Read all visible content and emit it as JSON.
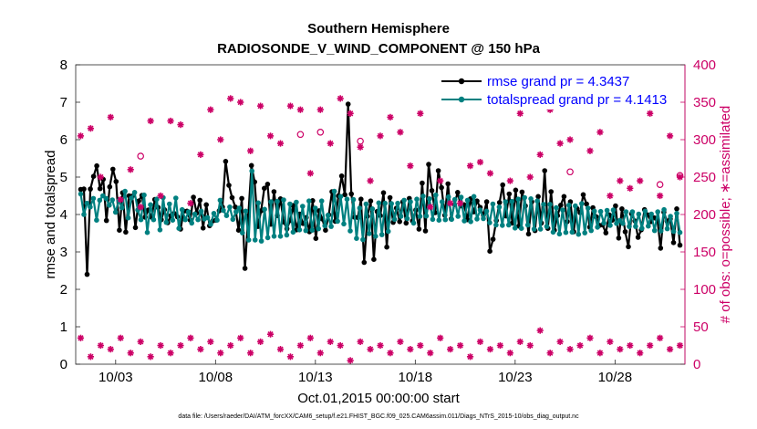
{
  "chart_data": {
    "type": "line",
    "title": "Southern Hemisphere",
    "subtitle": "RADIOSONDE_V_WIND_COMPONENT @ 150 hPa",
    "xlabel": "Oct.01,2015 00:00:00 start",
    "ylabel_left": "rmse and totalspread",
    "ylabel_right": "# of obs: o=possible; ∗=assimilated",
    "footnote": "data file: /Users/raeder/DAI/ATM_forcXX/CAM6_setup/f.e21.FHIST_BGC.f09_025.CAM6assim.011/Diags_NTrS_2015-10/obs_diag_output.nc",
    "xlim": [
      1.0,
      31.5
    ],
    "ylim_left": [
      0,
      8
    ],
    "ylim_right": [
      0,
      400
    ],
    "x_ticks": [
      3,
      8,
      13,
      18,
      23,
      28
    ],
    "x_tick_labels": [
      "10/03",
      "10/08",
      "10/13",
      "10/18",
      "10/23",
      "10/28"
    ],
    "y_ticks_left": [
      0,
      1,
      2,
      3,
      4,
      5,
      6,
      7,
      8
    ],
    "y_ticks_right": [
      0,
      50,
      100,
      150,
      200,
      250,
      300,
      350,
      400
    ],
    "legend": {
      "rmse": "rmse grand pr = 4.3437",
      "spread": "totalspread grand pr = 4.1413",
      "location": "top-right"
    },
    "series": [
      {
        "name": "rmse",
        "color": "#000000",
        "values": [
          4.67,
          4.68,
          2.4,
          4.68,
          5.02,
          5.3,
          4.69,
          4.94,
          3.84,
          4.74,
          5.21,
          4.88,
          3.58,
          4.58,
          3.53,
          4.5,
          4.49,
          3.65,
          4.36,
          4.51,
          3.93,
          4.12,
          3.93,
          4.4,
          4.19,
          3.86,
          4.13,
          3.78,
          3.97,
          4.03,
          3.94,
          3.61,
          4.09,
          4.09,
          3.85,
          4.46,
          4.04,
          4.38,
          3.64,
          4.26,
          3.7,
          3.83,
          3.85,
          4.1,
          4.2,
          5.42,
          4.78,
          4.45,
          4.2,
          3.58,
          4.43,
          2.56,
          3.96,
          5.31,
          4.87,
          3.68,
          4.1,
          4.7,
          4.81,
          3.74,
          4.61,
          3.97,
          4.42,
          3.8,
          3.62,
          3.84,
          4.24,
          3.59,
          4.01,
          3.76,
          3.92,
          3.54,
          4.37,
          3.36,
          4.1,
          3.88,
          3.58,
          3.99,
          4.61,
          3.82,
          4.5,
          5.03,
          4.53,
          6.95,
          4.55,
          3.93,
          3.92,
          4.41,
          2.72,
          3.95,
          4.36,
          2.8,
          4.08,
          3.97,
          4.58,
          3.13,
          4.45,
          3.79,
          4.17,
          3.81,
          4.34,
          3.77,
          4.43,
          3.83,
          4.12,
          3.61,
          4.84,
          3.56,
          5.34,
          4.64,
          4.05,
          5.17,
          4.72,
          3.98,
          4.82,
          3.88,
          4.27,
          4.59,
          4.23,
          4.26,
          3.86,
          4.42,
          4.07,
          4.36,
          4.19,
          3.98,
          4.34,
          3.02,
          3.34,
          3.84,
          4.32,
          4.79,
          3.96,
          4.55,
          3.77,
          4.65,
          3.69,
          4.6,
          4.23,
          3.48,
          4.34,
          3.57,
          4.48,
          3.77,
          5.17,
          3.63,
          4.61,
          3.58,
          3.97,
          4.25,
          4.48,
          3.81,
          4.34,
          3.54,
          4.16,
          4.05,
          4.53,
          4.28,
          3.66,
          4.18,
          3.94,
          3.71,
          3.72,
          3.51,
          3.99,
          3.85,
          4.23,
          3.37,
          4.15,
          3.54,
          3.14,
          4.02,
          3.83,
          3.39,
          3.59,
          4.13,
          3.99,
          3.81,
          3.91,
          3.86,
          3.1,
          4.06,
          3.82,
          3.88,
          3.25,
          4.15,
          3.18
        ]
      },
      {
        "name": "totalspread",
        "color": "#008080",
        "values": [
          4.55,
          4.0,
          4.3,
          4.2,
          4.43,
          3.85,
          4.38,
          4.5,
          4.43,
          4.25,
          4.39,
          4.06,
          4.37,
          4.18,
          4.62,
          3.91,
          4.44,
          4.59,
          4.12,
          3.86,
          4.52,
          3.52,
          4.26,
          3.86,
          4.41,
          3.59,
          4.45,
          3.79,
          4.28,
          3.85,
          4.44,
          3.63,
          4.13,
          3.86,
          4.07,
          3.77,
          4.01,
          3.86,
          4.09,
          3.88,
          3.92,
          3.74,
          4.03,
          3.85,
          4.38,
          4.11,
          3.97,
          4.2,
          3.87,
          4.07,
          4.17,
          3.51,
          4.09,
          3.32,
          5.16,
          3.32,
          4.31,
          3.29,
          4.14,
          3.38,
          4.34,
          3.42,
          4.35,
          3.42,
          4.39,
          3.45,
          4.28,
          3.53,
          4.33,
          3.59,
          4.22,
          3.57,
          4.36,
          3.58,
          4.17,
          3.62,
          4.36,
          3.7,
          3.98,
          3.68,
          4.62,
          3.82,
          4.48,
          3.75,
          4.41,
          3.56,
          4.4,
          3.36,
          4.17,
          3.33,
          4.28,
          3.49,
          4.15,
          3.42,
          4.31,
          3.46,
          4.3,
          3.55,
          4.29,
          3.87,
          4.3,
          3.95,
          4.38,
          3.89,
          4.34,
          3.77,
          4.41,
          3.95,
          4.49,
          3.96,
          4.42,
          3.87,
          4.52,
          3.85,
          4.34,
          3.86,
          4.47,
          3.87,
          4.4,
          3.95,
          4.46,
          3.83,
          4.38,
          3.81,
          4.48,
          3.88,
          4.12,
          3.89,
          4.09,
          3.78,
          4.28,
          3.72,
          4.2,
          3.71,
          4.34,
          3.72,
          4.35,
          3.64,
          4.41,
          3.63,
          4.45,
          3.72,
          4.42,
          3.61,
          4.36,
          3.61,
          4.27,
          3.68,
          4.27,
          3.53,
          4.18,
          3.48,
          4.12,
          3.52,
          4.25,
          3.53,
          4.23,
          3.47,
          4.29,
          3.51,
          4.17,
          3.57,
          4.09,
          3.66,
          4.08,
          3.77,
          4.11,
          3.71,
          4.12,
          3.76,
          3.84,
          3.76,
          4.07,
          3.68,
          4.07,
          3.68,
          4.01,
          3.63,
          4.09,
          3.69,
          4.01,
          3.57,
          4.07,
          3.56,
          4.13,
          3.62,
          3.95,
          3.55,
          4.03,
          3.52
        ]
      }
    ],
    "obs_assimilated": {
      "color": "#cc0066",
      "x": [
        1.25,
        1.75,
        2.25,
        2.75,
        3.25,
        3.75,
        4.25,
        4.75,
        5.25,
        5.75,
        6.25,
        6.75,
        7.25,
        7.75,
        8.25,
        8.75,
        9.25,
        9.75,
        10.25,
        10.75,
        11.25,
        11.75,
        12.25,
        12.75,
        13.25,
        13.75,
        14.25,
        14.75,
        15.25,
        15.75,
        16.25,
        16.75,
        17.25,
        17.75,
        18.25,
        18.75,
        19.25,
        19.75,
        20.25,
        20.75,
        21.25,
        21.75,
        22.25,
        22.75,
        23.25,
        23.75,
        24.25,
        24.75,
        25.25,
        25.75,
        26.25,
        26.75,
        27.25,
        27.75,
        28.25,
        28.75,
        29.25,
        29.75,
        30.25,
        30.75,
        31.25
      ],
      "high": [
        305,
        315,
        250,
        330,
        220,
        260,
        210,
        325,
        225,
        325,
        320,
        215,
        280,
        340,
        300,
        355,
        350,
        285,
        345,
        305,
        295,
        345,
        340,
        255,
        340,
        295,
        355,
        335,
        290,
        245,
        305,
        330,
        310,
        265,
        335,
        210,
        245,
        215,
        215,
        265,
        270,
        255,
        375,
        245,
        335,
        250,
        280,
        340,
        295,
        300,
        345,
        285,
        310,
        225,
        245,
        235,
        245,
        335,
        225,
        305,
        250
      ],
      "low": [
        35,
        10,
        25,
        20,
        35,
        15,
        30,
        10,
        25,
        15,
        25,
        35,
        20,
        30,
        15,
        25,
        35,
        15,
        30,
        40,
        20,
        10,
        25,
        35,
        15,
        30,
        25,
        5,
        30,
        20,
        25,
        15,
        30,
        20,
        25,
        15,
        35,
        20,
        25,
        10,
        30,
        20,
        25,
        15,
        30,
        25,
        45,
        15,
        30,
        20,
        25,
        35,
        15,
        30,
        20,
        25,
        15,
        25,
        35,
        20,
        25
      ]
    },
    "obs_possible_circles": {
      "color": "#cc0066",
      "points": [
        [
          4.25,
          278
        ],
        [
          12.25,
          307
        ],
        [
          13.25,
          310
        ],
        [
          15.25,
          298
        ],
        [
          25.75,
          257
        ],
        [
          30.25,
          240
        ],
        [
          31.25,
          252
        ]
      ]
    }
  }
}
